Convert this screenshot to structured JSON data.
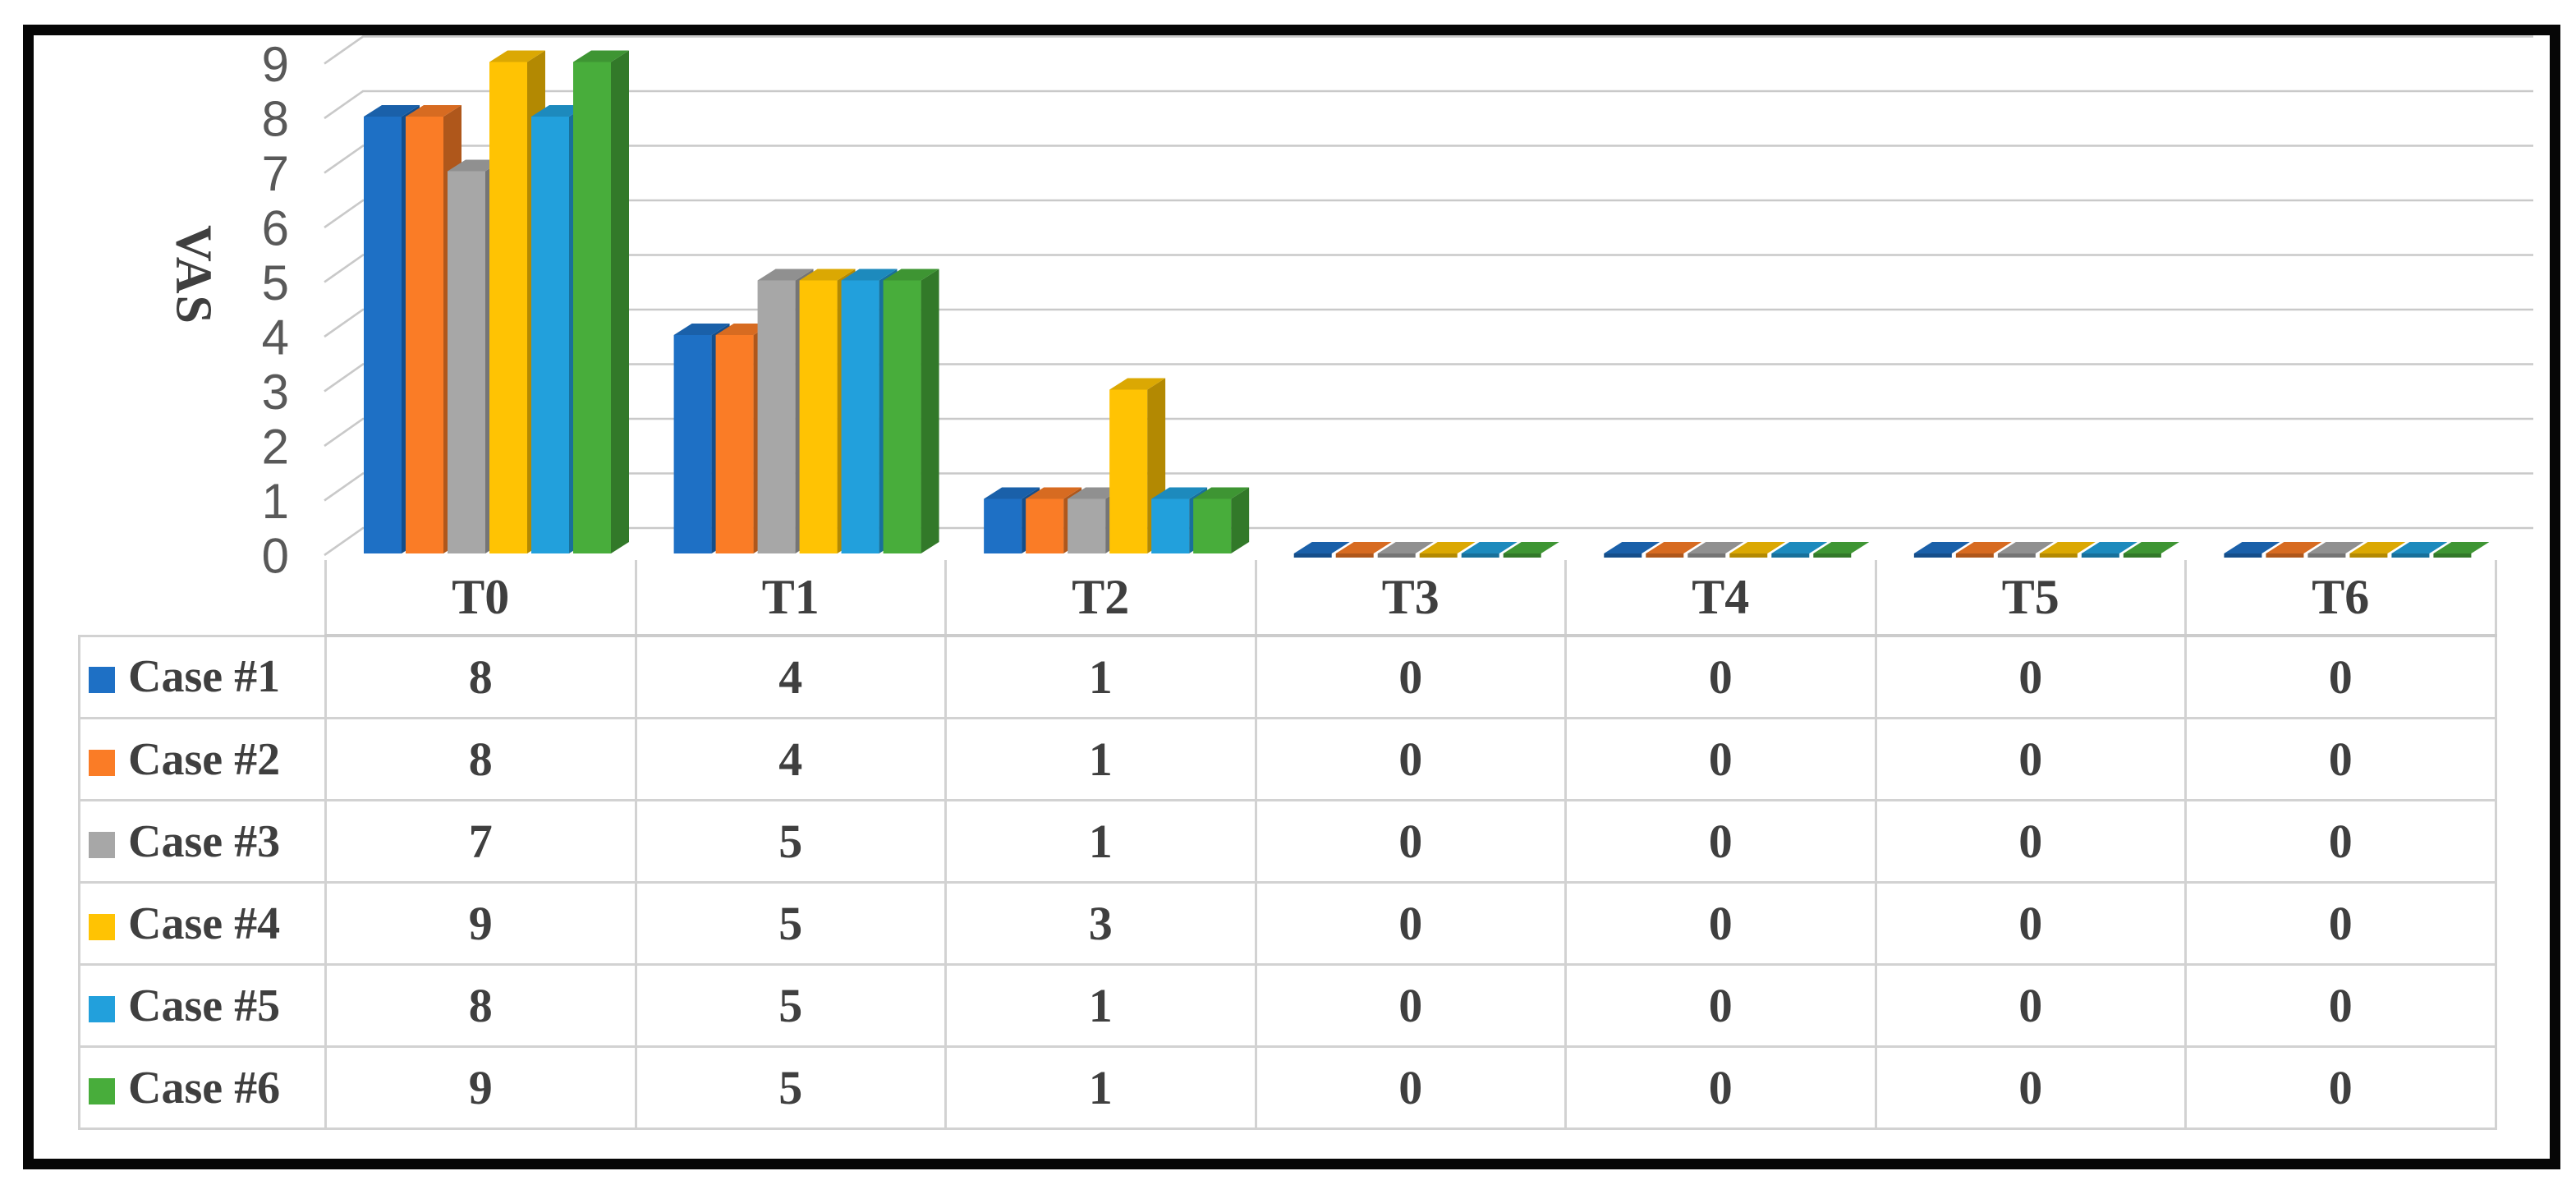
{
  "chart_data": {
    "type": "bar",
    "subtype": "3d-clustered-column-with-data-table",
    "title": "",
    "xlabel": "",
    "ylabel": "VAS",
    "ylim": [
      0,
      9
    ],
    "y_tick_step": 1,
    "grid": true,
    "legend_position": "data-table-left-column",
    "categories": [
      "T0",
      "T1",
      "T2",
      "T3",
      "T4",
      "T5",
      "T6"
    ],
    "series": [
      {
        "name": "Case #1",
        "color": "#1E70C5",
        "values": [
          8,
          4,
          1,
          0,
          0,
          0,
          0
        ]
      },
      {
        "name": "Case #2",
        "color": "#FA7C26",
        "values": [
          8,
          4,
          1,
          0,
          0,
          0,
          0
        ]
      },
      {
        "name": "Case #3",
        "color": "#A7A7A7",
        "values": [
          7,
          5,
          1,
          0,
          0,
          0,
          0
        ]
      },
      {
        "name": "Case #4",
        "color": "#FFC303",
        "values": [
          9,
          5,
          3,
          0,
          0,
          0,
          0
        ]
      },
      {
        "name": "Case #5",
        "color": "#22A0DC",
        "values": [
          8,
          5,
          1,
          0,
          0,
          0,
          0
        ]
      },
      {
        "name": "Case #6",
        "color": "#48AD3B",
        "values": [
          9,
          5,
          1,
          0,
          0,
          0,
          0
        ]
      }
    ],
    "colors": {
      "grid_line": "#C9C9C9",
      "axis_text": "#595959",
      "table_text": "#3F3F3F",
      "table_border": "#D2D2D2",
      "frame_border": "#060606"
    }
  }
}
